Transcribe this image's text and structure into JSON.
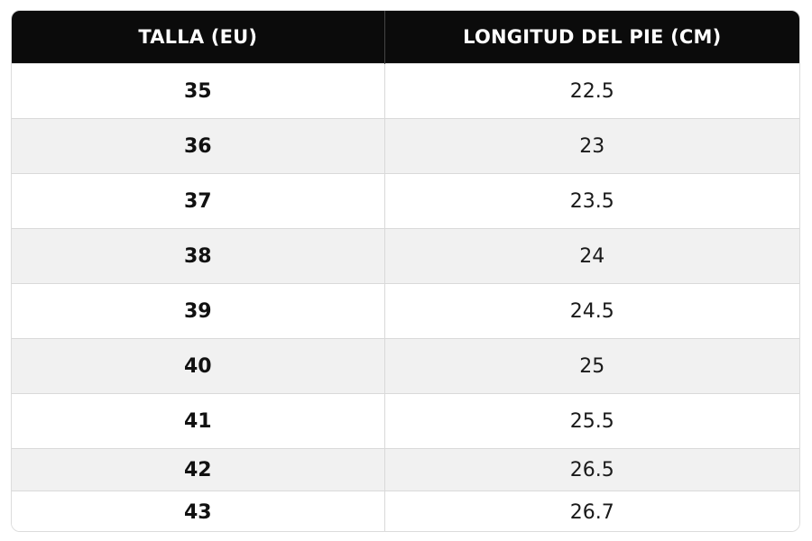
{
  "table": {
    "headers": [
      "TALLA (EU)",
      "LONGITUD DEL PIE (CM)"
    ],
    "rows": [
      [
        "35",
        "22.5"
      ],
      [
        "36",
        "23"
      ],
      [
        "37",
        "23.5"
      ],
      [
        "38",
        "24"
      ],
      [
        "39",
        "24.5"
      ],
      [
        "40",
        "25"
      ],
      [
        "41",
        "25.5"
      ],
      [
        "42",
        "26.5"
      ],
      [
        "43",
        "26.7"
      ]
    ]
  }
}
